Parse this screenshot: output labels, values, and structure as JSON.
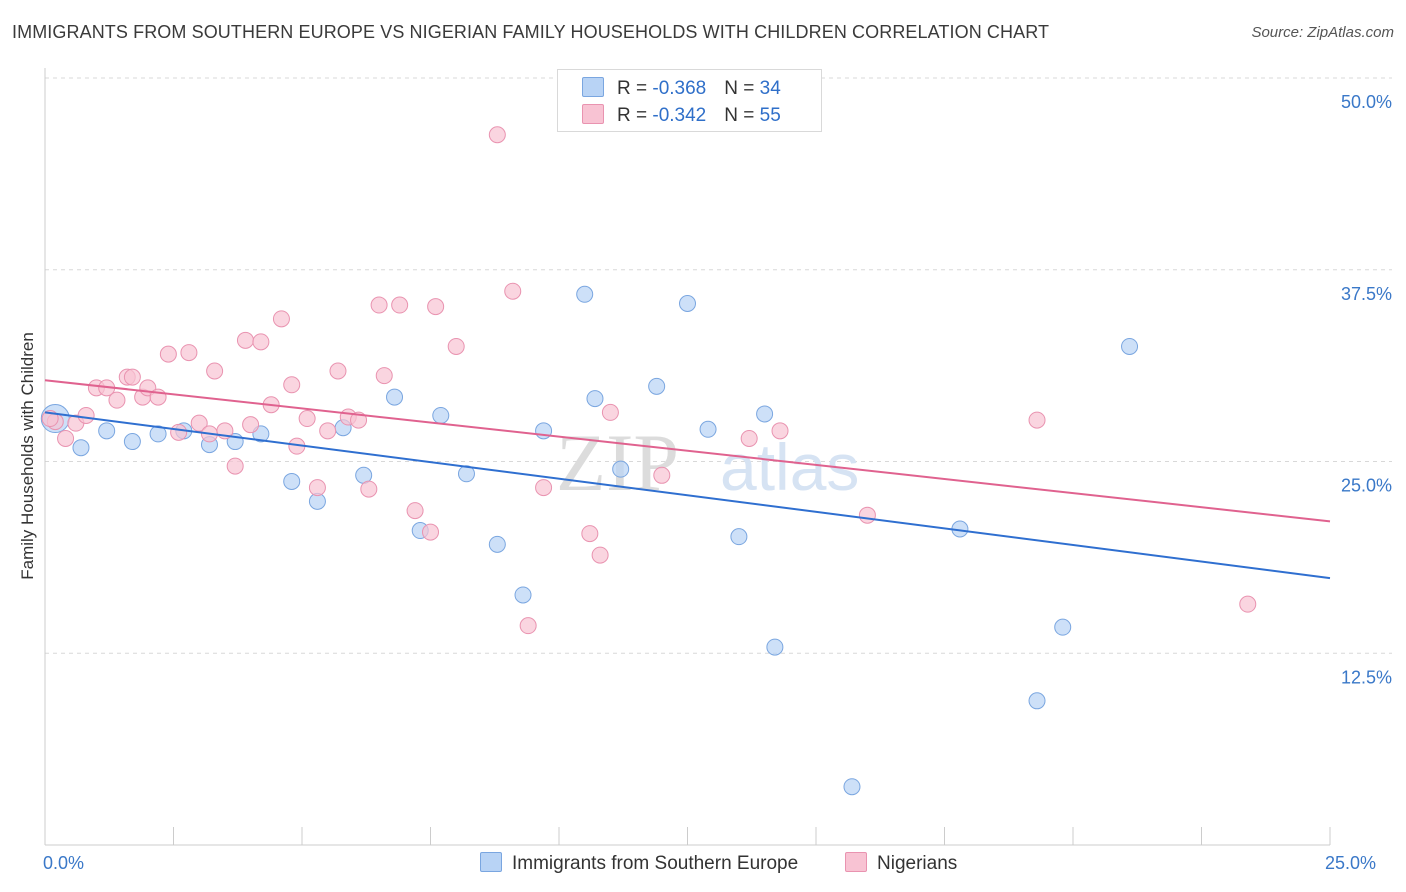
{
  "title": "IMMIGRANTS FROM SOUTHERN EUROPE VS NIGERIAN FAMILY HOUSEHOLDS WITH CHILDREN CORRELATION CHART",
  "source": "Source: ZipAtlas.com",
  "colors": {
    "blue_fill": "#b8d3f5",
    "blue_stroke": "#7aa6e0",
    "blue_line": "#2f6fd0",
    "pink_fill": "#f8c3d3",
    "pink_stroke": "#e993b0",
    "pink_line": "#e0628f",
    "axis_text": "#3a78c8",
    "grid": "#d8d8d8"
  },
  "legend_top": [
    {
      "r_label": "R = ",
      "r_value": "-0.368",
      "n_label": "N = ",
      "n_value": "34",
      "color": "#b8d3f5"
    },
    {
      "r_label": "R = ",
      "r_value": "-0.342",
      "n_label": "N = ",
      "n_value": "55",
      "color": "#f8c3d3"
    }
  ],
  "watermark": {
    "zip": "ZIP",
    "atlas": "atlas"
  },
  "chart_data": {
    "type": "scatter",
    "title": "IMMIGRANTS FROM SOUTHERN EUROPE VS NIGERIAN FAMILY HOUSEHOLDS WITH CHILDREN CORRELATION CHART",
    "xlabel": "",
    "ylabel": "Family Households with Children",
    "xlim": [
      0,
      25
    ],
    "ylim": [
      0,
      50
    ],
    "x_ticks": [
      "0.0%",
      "25.0%"
    ],
    "y_ticks": [
      {
        "value": 12.5,
        "label": "12.5%"
      },
      {
        "value": 25.0,
        "label": "25.0%"
      },
      {
        "value": 37.5,
        "label": "37.5%"
      },
      {
        "value": 50.0,
        "label": "50.0%"
      }
    ],
    "grid": true,
    "legend_position": "bottom",
    "series": [
      {
        "name": "Immigrants from Southern Europe",
        "color": "#b8d3f5",
        "trend": {
          "x0": 0,
          "y0": 28.2,
          "x1": 25,
          "y1": 17.4
        },
        "points": [
          [
            0.2,
            27.8
          ],
          [
            0.7,
            25.9
          ],
          [
            1.2,
            27.0
          ],
          [
            1.7,
            26.3
          ],
          [
            2.2,
            26.8
          ],
          [
            2.7,
            27.0
          ],
          [
            3.2,
            26.1
          ],
          [
            3.7,
            26.3
          ],
          [
            4.2,
            26.8
          ],
          [
            4.8,
            23.7
          ],
          [
            5.3,
            22.4
          ],
          [
            5.8,
            27.2
          ],
          [
            6.2,
            24.1
          ],
          [
            6.8,
            29.2
          ],
          [
            7.3,
            20.5
          ],
          [
            7.7,
            28.0
          ],
          [
            8.2,
            24.2
          ],
          [
            8.8,
            19.6
          ],
          [
            9.3,
            16.3
          ],
          [
            9.7,
            27.0
          ],
          [
            10.5,
            35.9
          ],
          [
            10.7,
            29.1
          ],
          [
            11.2,
            24.5
          ],
          [
            11.9,
            29.9
          ],
          [
            12.5,
            35.3
          ],
          [
            12.9,
            27.1
          ],
          [
            13.5,
            20.1
          ],
          [
            14.0,
            28.1
          ],
          [
            14.2,
            12.9
          ],
          [
            15.7,
            3.8
          ],
          [
            17.8,
            20.6
          ],
          [
            19.3,
            9.4
          ],
          [
            19.8,
            14.2
          ],
          [
            21.1,
            32.5
          ]
        ]
      },
      {
        "name": "Nigerians",
        "color": "#f8c3d3",
        "trend": {
          "x0": 0,
          "y0": 30.3,
          "x1": 25,
          "y1": 21.1
        },
        "points": [
          [
            0.2,
            27.6
          ],
          [
            0.4,
            26.5
          ],
          [
            0.6,
            27.5
          ],
          [
            0.8,
            28.0
          ],
          [
            1.0,
            29.8
          ],
          [
            1.2,
            29.8
          ],
          [
            1.4,
            29.0
          ],
          [
            1.6,
            30.5
          ],
          [
            1.7,
            30.5
          ],
          [
            1.9,
            29.2
          ],
          [
            2.0,
            29.8
          ],
          [
            2.2,
            29.2
          ],
          [
            2.4,
            32.0
          ],
          [
            2.6,
            26.9
          ],
          [
            2.8,
            32.1
          ],
          [
            3.0,
            27.5
          ],
          [
            3.2,
            26.8
          ],
          [
            3.3,
            30.9
          ],
          [
            3.5,
            27.0
          ],
          [
            3.7,
            24.7
          ],
          [
            3.9,
            32.9
          ],
          [
            4.0,
            27.4
          ],
          [
            4.2,
            32.8
          ],
          [
            4.4,
            28.7
          ],
          [
            4.6,
            34.3
          ],
          [
            4.8,
            30.0
          ],
          [
            4.9,
            26.0
          ],
          [
            5.1,
            27.8
          ],
          [
            5.3,
            23.3
          ],
          [
            5.5,
            27.0
          ],
          [
            5.7,
            30.9
          ],
          [
            5.9,
            27.9
          ],
          [
            6.1,
            27.7
          ],
          [
            6.3,
            23.2
          ],
          [
            6.5,
            35.2
          ],
          [
            6.6,
            30.6
          ],
          [
            6.9,
            35.2
          ],
          [
            7.2,
            21.8
          ],
          [
            7.5,
            20.4
          ],
          [
            7.6,
            35.1
          ],
          [
            8.0,
            32.5
          ],
          [
            8.8,
            46.3
          ],
          [
            9.1,
            36.1
          ],
          [
            9.4,
            14.3
          ],
          [
            9.7,
            23.3
          ],
          [
            10.6,
            20.3
          ],
          [
            10.8,
            18.9
          ],
          [
            11.0,
            28.2
          ],
          [
            12.0,
            24.1
          ],
          [
            13.7,
            26.5
          ],
          [
            14.3,
            27.0
          ],
          [
            16.0,
            21.5
          ],
          [
            19.3,
            27.7
          ],
          [
            23.4,
            15.7
          ],
          [
            0.1,
            27.8
          ]
        ]
      }
    ]
  }
}
